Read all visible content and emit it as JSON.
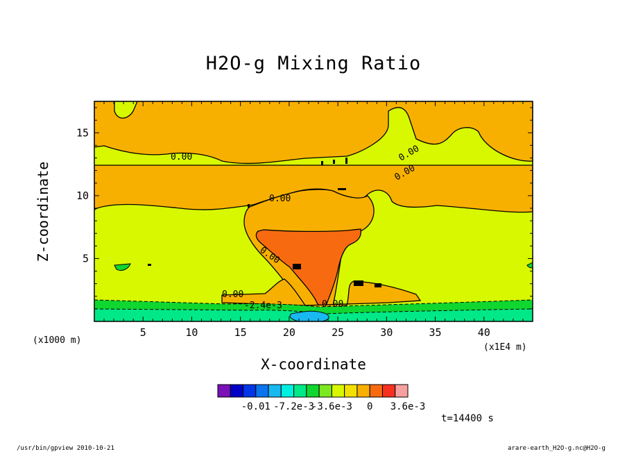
{
  "chart_data": {
    "type": "contour",
    "title": "H2O-g Mixing Ratio",
    "xlabel": "X-coordinate",
    "ylabel": "Z-coordinate",
    "x_unit_left": "(x1000 m)",
    "x_unit_right": "(x1E4 m)",
    "xlim": [
      0,
      45
    ],
    "ylim": [
      0,
      17.5
    ],
    "x_ticks": [
      "5",
      "10",
      "15",
      "20",
      "25",
      "30",
      "35",
      "40"
    ],
    "x_tick_values": [
      5,
      10,
      15,
      20,
      25,
      30,
      35,
      40
    ],
    "y_ticks": [
      "5",
      "10",
      "15"
    ],
    "y_tick_values": [
      5,
      10,
      15
    ],
    "contour_labels": [
      "0.00",
      "0.00",
      "0.00",
      "0.00",
      "0.00",
      "0.00",
      "-2.4e-3",
      "0.00"
    ],
    "colorbar": {
      "colors": [
        "#7a10b8",
        "#0000c8",
        "#0036e8",
        "#0a74ee",
        "#18b8f0",
        "#00f0e0",
        "#00e888",
        "#10d630",
        "#7ce820",
        "#d8f800",
        "#f4e000",
        "#f8b000",
        "#f86a10",
        "#f83020",
        "#f8a0a0"
      ],
      "tick_labels": [
        "-0.01",
        "-7.2e-3",
        "-3.6e-3",
        "0",
        "3.6e-3"
      ],
      "tick_values": [
        -0.0108,
        -0.0072,
        -0.0036,
        0,
        0.0036
      ]
    },
    "timestamp": "t=14400 s",
    "footer_left": "/usr/bin/gpview  2010-10-21",
    "footer_right": "arare-earth_H2O-g.nc@H2O-g"
  }
}
